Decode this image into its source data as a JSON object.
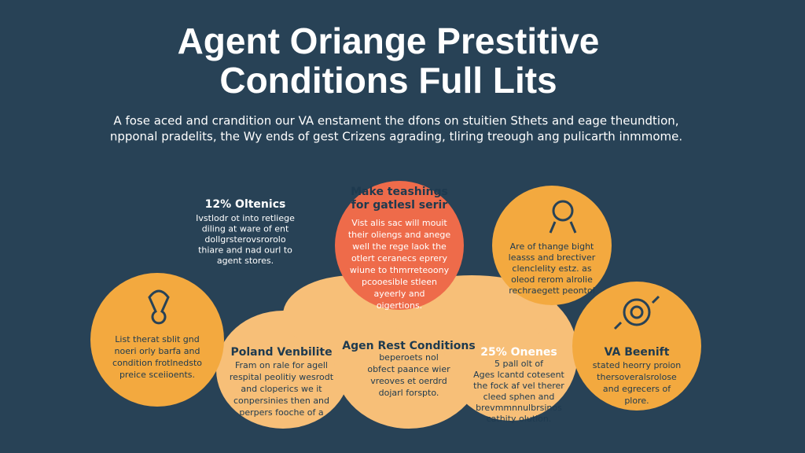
{
  "title": {
    "lines": [
      "Agent Oriange Prestitive",
      "Conditions Full Lits"
    ]
  },
  "subtitle": {
    "lines": [
      "A fose aced and crandition our VA enstament the dfons on stuitien Sthets and eage theundtion,",
      "npponal pradelits, the Wy ends of gest Crizens agrading, tliring treough ang pulicarth inmmome."
    ]
  },
  "panels": [
    {
      "heading": [
        "12% Oltenics"
      ],
      "lines": [
        "Ivstlodr ot into retliege",
        "diling at ware of ent",
        "dollgrsterovsrorolo",
        "thiare and nad ourl to",
        "agent stores."
      ]
    },
    {
      "heading": [
        "Make teashings",
        "for gatlesl serir"
      ],
      "lines": [
        "Vist alis sac will mouit",
        "their oliengs and anege",
        "well the rege laok the",
        "otlert ceranecs eprery",
        "wiune to thmrreteoony",
        "pcooesible stleen",
        "ayeerly and",
        "oigertions."
      ]
    },
    {
      "heading": [],
      "lines": [
        "Are of thange bight",
        "leasss and brectiver",
        "clenclelity estz. as",
        "oleod rerom alrolie",
        "rechraegett peontol"
      ]
    },
    {
      "heading": [],
      "lines": [
        "List therat sblit gnd",
        "noeri orly barfa and",
        "condition frotlnedsto",
        "preice sceiioents."
      ]
    },
    {
      "heading": [
        "Poland Venbilite"
      ],
      "lines": [
        "Fram on rale for agell",
        "respital peolitiy wesrodt",
        "and cloperics we it",
        "conpersinies then and",
        "perpers fooche of a"
      ]
    },
    {
      "heading": [
        "Agen Rest Conditions"
      ],
      "lines": [
        "beperoets nol",
        "obfect paance wier",
        "vreoves et oerdrd",
        "dojarl forspto."
      ]
    },
    {
      "heading": [
        "25% Onenes"
      ],
      "lines": [
        "5 pall olt of",
        "Ages lcantd cotesent",
        "the fock af vel therer",
        "cleed sphen and",
        "brevmmnnulbrsinos",
        "cathity olution."
      ]
    },
    {
      "heading": [
        "VA Beenift"
      ],
      "lines": [
        "stated heorry proion",
        "thersoveralsrolose",
        "and egrecers of",
        "plore."
      ]
    }
  ]
}
